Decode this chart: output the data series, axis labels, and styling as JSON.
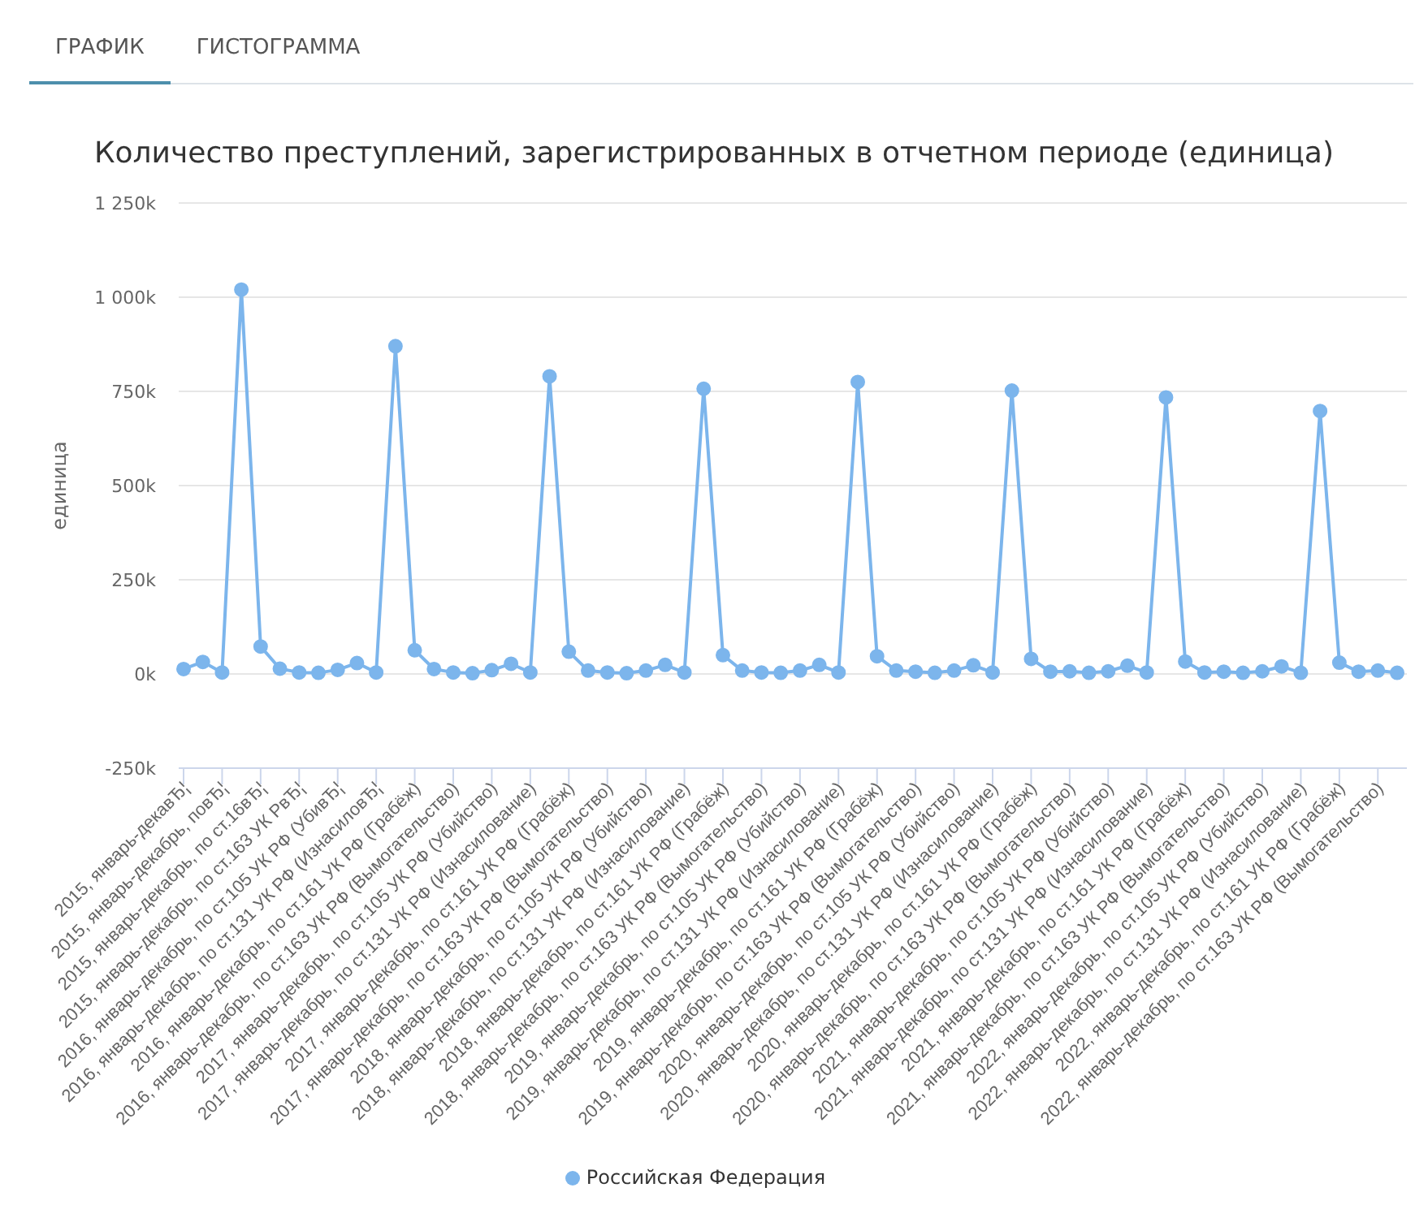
{
  "chart_data": {
    "type": "line",
    "title": "Количество преступлений, зарегистрированных в отчетном периоде (единица)",
    "ylabel": "единица",
    "annotations": [
      "ГРАФИК",
      "ГИСТОГРАММА"
    ],
    "categories": [
      "2015, январь-декавЂ¦",
      null,
      "2015, январь-декабрь, повЂ¦",
      null,
      "2015, январь-декабрь, по ст.16вЂ¦",
      null,
      "2015, январь-декабрь, по ст.163 УК РвЂ¦",
      null,
      "2016, январь-декабрь, по ст.105 УК РФ (УбивЂ¦",
      null,
      "2016, январь-декабрь, по ст.131 УК РФ (ИзнасиловЂ¦",
      null,
      "2016, январь-декабрь, по ст.161 УК РФ (Грабёж)",
      null,
      "2016, январь-декабрь, по ст.163 УК РФ (Вымогательство)",
      null,
      "2017, январь-декабрь, по ст.105 УК РФ (Убийство)",
      null,
      "2017, январь-декабрь, по ст.131 УК РФ (Изнасилование)",
      null,
      "2017, январь-декабрь, по ст.161 УК РФ (Грабёж)",
      null,
      "2017, январь-декабрь, по ст.163 УК РФ (Вымогательство)",
      null,
      "2018, январь-декабрь, по ст.105 УК РФ (Убийство)",
      null,
      "2018, январь-декабрь, по ст.131 УК РФ (Изнасилование)",
      null,
      "2018, январь-декабрь, по ст.161 УК РФ (Грабёж)",
      null,
      "2018, январь-декабрь, по ст.163 УК РФ (Вымогательство)",
      null,
      "2019, январь-декабрь, по ст.105 УК РФ (Убийство)",
      null,
      "2019, январь-декабрь, по ст.131 УК РФ (Изнасилование)",
      null,
      "2019, январь-декабрь, по ст.161 УК РФ (Грабёж)",
      null,
      "2019, январь-декабрь, по ст.163 УК РФ (Вымогательство)",
      null,
      "2020, январь-декабрь, по ст.105 УК РФ (Убийство)",
      null,
      "2020, январь-декабрь, по ст.131 УК РФ (Изнасилование)",
      null,
      "2020, январь-декабрь, по ст.161 УК РФ (Грабёж)",
      null,
      "2020, январь-декабрь, по ст.163 УК РФ (Вымогательство)",
      null,
      "2021, январь-декабрь, по ст.105 УК РФ (Убийство)",
      null,
      "2021, январь-декабрь, по ст.131 УК РФ (Изнасилование)",
      null,
      "2021, январь-декабрь, по ст.161 УК РФ (Грабёж)",
      null,
      "2021, январь-декабрь, по ст.163 УК РФ (Вымогательство)",
      null,
      "2022, январь-декабрь, по ст.105 УК РФ (Убийство)",
      null,
      "2022, январь-декабрь, по ст.131 УК РФ (Изнасилование)",
      null,
      "2022, январь-декабрь, по ст.161 УК РФ (Грабёж)",
      null,
      "2022, январь-декабрь, по ст.163 УК РФ (Вымогательство)",
      null
    ],
    "series": [
      {
        "name": "Российская Федерация",
        "color": "#7cb5ec",
        "values": [
          13000,
          32000,
          4000,
          1020000,
          73000,
          14000,
          4000,
          3000,
          11000,
          29000,
          4000,
          870000,
          63000,
          13000,
          4000,
          2000,
          10000,
          27000,
          4000,
          790000,
          59000,
          9000,
          4000,
          2000,
          9000,
          24000,
          4000,
          757000,
          50000,
          9000,
          4000,
          3000,
          9000,
          24000,
          4000,
          775000,
          47000,
          9000,
          6000,
          3000,
          9000,
          23000,
          4000,
          752000,
          40000,
          6000,
          7000,
          3000,
          7000,
          22000,
          4000,
          734000,
          33000,
          4000,
          6000,
          3000,
          7000,
          20000,
          3000,
          698000,
          30000,
          6000,
          9000,
          3000
        ]
      }
    ],
    "ylim": [
      -250000,
      1250000
    ],
    "yticks": [
      {
        "value": -250000,
        "label": "-250k"
      },
      {
        "value": 0,
        "label": "0k"
      },
      {
        "value": 250000,
        "label": "250k"
      },
      {
        "value": 500000,
        "label": "500k"
      },
      {
        "value": 750000,
        "label": "750k"
      },
      {
        "value": 1000000,
        "label": "1 000k"
      },
      {
        "value": 1250000,
        "label": "1 250k"
      }
    ],
    "grid": "y",
    "legend": "bottom",
    "marker": "circle"
  }
}
